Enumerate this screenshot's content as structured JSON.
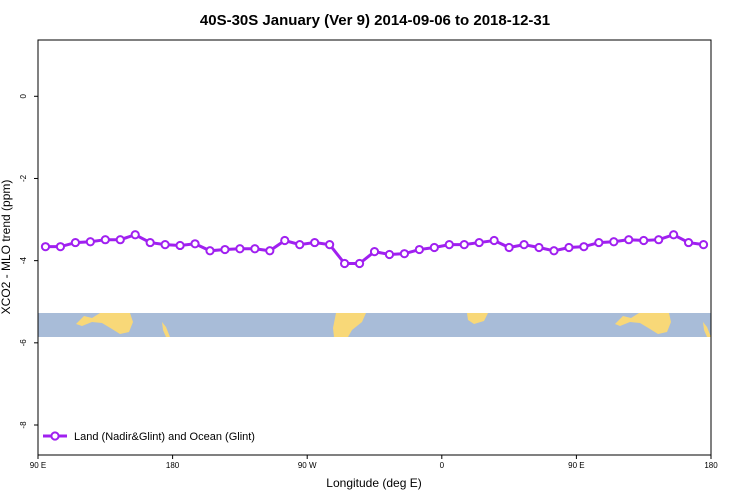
{
  "chart_data": {
    "type": "line",
    "title": "40S-30S January (Ver 9)   2014-09-06 to 2018-12-31",
    "x_label": "Longitude (deg E)",
    "y_label": "XCO2 - MLO trend (ppm)",
    "x": [
      95,
      105,
      115,
      125,
      135,
      145,
      155,
      165,
      175,
      185,
      195,
      205,
      215,
      225,
      235,
      245,
      255,
      265,
      275,
      285,
      295,
      305,
      315,
      325,
      335,
      345,
      355,
      365,
      375,
      385,
      395,
      405,
      415,
      425,
      435,
      445,
      455,
      465,
      475,
      485,
      495,
      505,
      515,
      525,
      535
    ],
    "series": [
      {
        "name": "Land (Nadir&Glint) and Ocean (Glint)",
        "color": "#a020f0",
        "values": [
          -3.66,
          -3.66,
          -3.56,
          -3.54,
          -3.49,
          -3.49,
          -3.37,
          -3.56,
          -3.61,
          -3.63,
          -3.59,
          -3.76,
          -3.73,
          -3.71,
          -3.71,
          -3.76,
          -3.51,
          -3.61,
          -3.56,
          -3.61,
          -4.07,
          -4.07,
          -3.78,
          -3.85,
          -3.83,
          -3.73,
          -3.68,
          -3.61,
          -3.61,
          -3.56,
          -3.51,
          -3.68,
          -3.61,
          -3.68,
          -3.76,
          -3.68,
          -3.66,
          -3.56,
          -3.54,
          -3.49,
          -3.51,
          -3.49,
          -3.37,
          -3.56,
          -3.61
        ]
      }
    ],
    "xlim": [
      90,
      540
    ],
    "xticks": [
      {
        "value": 90,
        "label": "90 E"
      },
      180,
      {
        "value": 270,
        "label": "90 W"
      },
      {
        "value": 360,
        "label": "0"
      },
      {
        "value": 450,
        "label": "90 E"
      },
      {
        "value": 540,
        "label": "180"
      }
    ],
    "ylim": [
      -8.73,
      1.37
    ],
    "yticks": [
      0,
      -2,
      -4,
      -6,
      -8
    ],
    "legend": "bottom-left"
  }
}
